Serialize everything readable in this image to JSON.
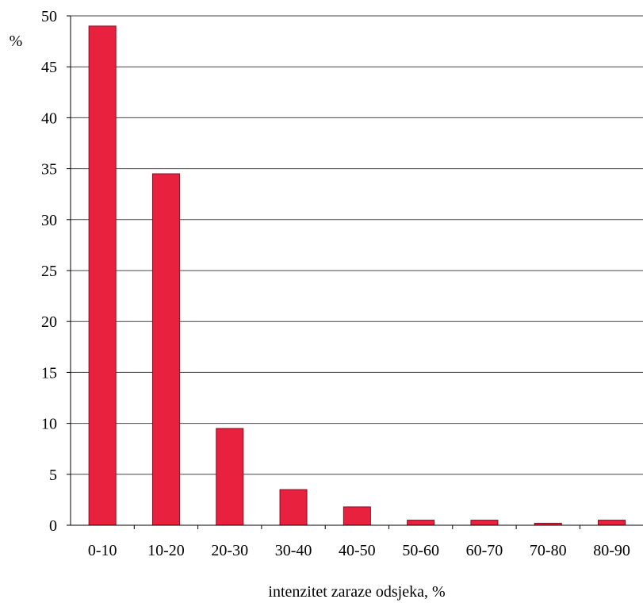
{
  "chart_data": {
    "type": "bar",
    "title": "",
    "xlabel": "intenzitet zaraze odsjeka, %",
    "ylabel": "%",
    "categories": [
      "0-10",
      "10-20",
      "20-30",
      "30-40",
      "40-50",
      "50-60",
      "60-70",
      "70-80",
      "80-90"
    ],
    "values": [
      49,
      34.5,
      9.5,
      3.5,
      1.8,
      0.5,
      0.5,
      0.2,
      0.5
    ],
    "ylim": [
      0,
      50
    ],
    "yticks": [
      0,
      5,
      10,
      15,
      20,
      25,
      30,
      35,
      40,
      45,
      50
    ],
    "grid": true,
    "legend": "none",
    "bar_color": "#E8213F",
    "bar_edge_color": "#8a0c20"
  }
}
